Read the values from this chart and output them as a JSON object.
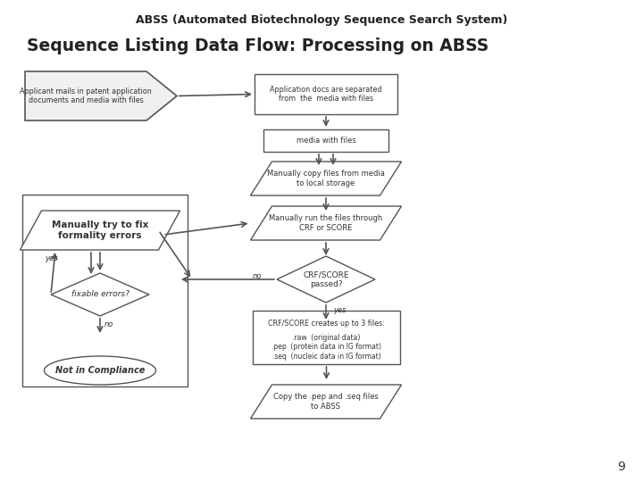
{
  "title": "ABSS (Automated Biotechnology Sequence Search System)",
  "subtitle": "Sequence Listing Data Flow: Processing on ABSS",
  "bg_color": "#ffffff",
  "box_color": "#ffffff",
  "border_color": "#555555",
  "text_color": "#333333",
  "page_number": "9"
}
